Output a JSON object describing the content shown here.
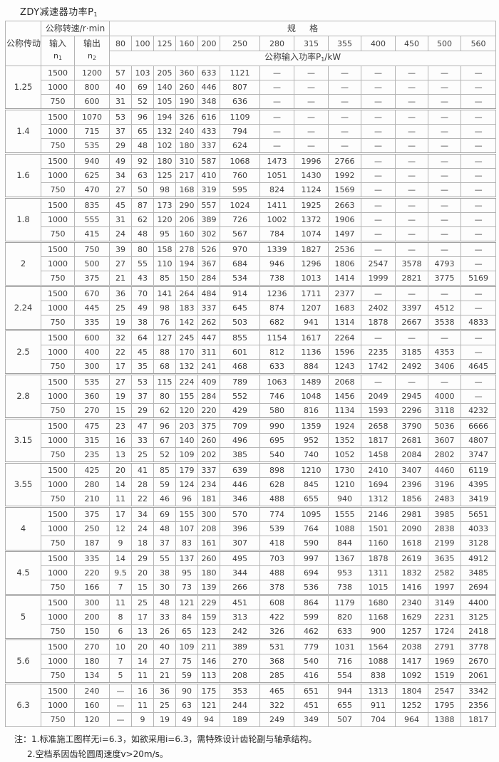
{
  "title": {
    "text": "ZDY减速器功率P",
    "sub": "1"
  },
  "header": {
    "ratio_label": "公称传动比i",
    "speed_label": "公称转速/r·min",
    "input_label": "输入",
    "input_symbol": "n",
    "input_symbol_sub": "1",
    "output_label": "输出",
    "output_symbol": "n",
    "output_symbol_sub": "2",
    "spec_label": "规格",
    "sizes": [
      "80",
      "100",
      "125",
      "160",
      "200",
      "250",
      "280",
      "315",
      "355",
      "400",
      "450",
      "500",
      "560"
    ],
    "power_label_pre": "公称输入功率P",
    "power_label_sub": "1",
    "power_label_post": "/kW"
  },
  "table": {
    "groups": [
      {
        "ratio": "1.25",
        "rows": [
          {
            "input": "1500",
            "output": "1200",
            "values": [
              "57",
              "103",
              "205",
              "360",
              "633",
              "1121",
              "—",
              "—",
              "—",
              "—",
              "—",
              "—",
              "—"
            ]
          },
          {
            "input": "1000",
            "output": "800",
            "values": [
              "40",
              "69",
              "140",
              "260",
              "446",
              "807",
              "—",
              "—",
              "—",
              "—",
              "—",
              "—",
              "—"
            ]
          },
          {
            "input": "750",
            "output": "600",
            "values": [
              "31",
              "52",
              "105",
              "190",
              "348",
              "636",
              "—",
              "—",
              "—",
              "—",
              "—",
              "—",
              "—"
            ]
          }
        ]
      },
      {
        "ratio": "1.4",
        "rows": [
          {
            "input": "1500",
            "output": "1070",
            "values": [
              "53",
              "96",
              "194",
              "326",
              "616",
              "1109",
              "—",
              "—",
              "—",
              "—",
              "—",
              "—",
              "—"
            ]
          },
          {
            "input": "1000",
            "output": "715",
            "values": [
              "37",
              "65",
              "132",
              "240",
              "433",
              "794",
              "—",
              "—",
              "—",
              "—",
              "—",
              "—",
              "—"
            ]
          },
          {
            "input": "750",
            "output": "535",
            "values": [
              "29",
              "48",
              "102",
              "180",
              "337",
              "624",
              "—",
              "—",
              "—",
              "—",
              "—",
              "—",
              "—"
            ]
          }
        ]
      },
      {
        "ratio": "1.6",
        "rows": [
          {
            "input": "1500",
            "output": "940",
            "values": [
              "49",
              "92",
              "180",
              "310",
              "587",
              "1068",
              "1473",
              "1996",
              "2766",
              "—",
              "—",
              "—",
              "—"
            ]
          },
          {
            "input": "1000",
            "output": "625",
            "values": [
              "34",
              "63",
              "125",
              "217",
              "410",
              "760",
              "1051",
              "1430",
              "1992",
              "—",
              "—",
              "—",
              "—"
            ]
          },
          {
            "input": "750",
            "output": "470",
            "values": [
              "27",
              "50",
              "98",
              "168",
              "319",
              "595",
              "824",
              "1124",
              "1569",
              "—",
              "—",
              "—",
              "—"
            ]
          }
        ]
      },
      {
        "ratio": "1.8",
        "rows": [
          {
            "input": "1500",
            "output": "835",
            "values": [
              "45",
              "87",
              "173",
              "290",
              "557",
              "1024",
              "1411",
              "1925",
              "2663",
              "—",
              "—",
              "—",
              "—"
            ]
          },
          {
            "input": "1000",
            "output": "555",
            "values": [
              "31",
              "62",
              "120",
              "206",
              "389",
              "726",
              "1002",
              "1372",
              "1906",
              "—",
              "—",
              "—",
              "—"
            ]
          },
          {
            "input": "750",
            "output": "415",
            "values": [
              "24",
              "48",
              "95",
              "160",
              "302",
              "567",
              "784",
              "1074",
              "1497",
              "—",
              "—",
              "—",
              "—"
            ]
          }
        ]
      },
      {
        "ratio": "2",
        "rows": [
          {
            "input": "1500",
            "output": "750",
            "values": [
              "39",
              "80",
              "158",
              "278",
              "526",
              "970",
              "1339",
              "1827",
              "2536",
              "—",
              "—",
              "—",
              "—"
            ]
          },
          {
            "input": "1000",
            "output": "500",
            "values": [
              "27",
              "55",
              "110",
              "194",
              "367",
              "684",
              "946",
              "1296",
              "1806",
              "2547",
              "3578",
              "4793",
              "—"
            ]
          },
          {
            "input": "750",
            "output": "375",
            "values": [
              "21",
              "43",
              "85",
              "150",
              "284",
              "534",
              "738",
              "1013",
              "1414",
              "1999",
              "2821",
              "3775",
              "5169"
            ]
          }
        ]
      },
      {
        "ratio": "2.24",
        "rows": [
          {
            "input": "1500",
            "output": "670",
            "values": [
              "36",
              "70",
              "141",
              "264",
              "484",
              "914",
              "1236",
              "1711",
              "2377",
              "—",
              "—",
              "—",
              "—"
            ]
          },
          {
            "input": "1000",
            "output": "445",
            "values": [
              "25",
              "49",
              "98",
              "183",
              "337",
              "645",
              "874",
              "1207",
              "1683",
              "2402",
              "3397",
              "4512",
              "—"
            ]
          },
          {
            "input": "750",
            "output": "335",
            "values": [
              "19",
              "38",
              "76",
              "142",
              "262",
              "503",
              "682",
              "941",
              "1314",
              "1878",
              "2667",
              "3538",
              "4833"
            ]
          }
        ]
      },
      {
        "ratio": "2.5",
        "rows": [
          {
            "input": "1500",
            "output": "600",
            "values": [
              "32",
              "64",
              "127",
              "245",
              "447",
              "855",
              "1154",
              "1617",
              "2264",
              "—",
              "—",
              "—",
              "—"
            ]
          },
          {
            "input": "1000",
            "output": "400",
            "values": [
              "22",
              "45",
              "88",
              "170",
              "311",
              "601",
              "812",
              "1136",
              "1596",
              "2235",
              "3185",
              "4353",
              "—"
            ]
          },
          {
            "input": "750",
            "output": "300",
            "values": [
              "17",
              "35",
              "68",
              "132",
              "241",
              "468",
              "633",
              "884",
              "1243",
              "1742",
              "2492",
              "3406",
              "4645"
            ]
          }
        ]
      },
      {
        "ratio": "2.8",
        "rows": [
          {
            "input": "1500",
            "output": "535",
            "values": [
              "27",
              "53",
              "115",
              "224",
              "409",
              "789",
              "1063",
              "1489",
              "2068",
              "—",
              "—",
              "—",
              "—"
            ]
          },
          {
            "input": "1000",
            "output": "360",
            "values": [
              "19",
              "37",
              "80",
              "155",
              "284",
              "552",
              "746",
              "1048",
              "1456",
              "2049",
              "2945",
              "4000",
              "—"
            ]
          },
          {
            "input": "750",
            "output": "270",
            "values": [
              "15",
              "29",
              "62",
              "120",
              "220",
              "429",
              "580",
              "816",
              "1134",
              "1593",
              "2296",
              "3118",
              "4232"
            ]
          }
        ]
      },
      {
        "ratio": "3.15",
        "rows": [
          {
            "input": "1500",
            "output": "475",
            "values": [
              "23",
              "47",
              "96",
              "203",
              "375",
              "709",
              "990",
              "1359",
              "1924",
              "2658",
              "3790",
              "5036",
              "6666"
            ]
          },
          {
            "input": "1000",
            "output": "315",
            "values": [
              "16",
              "33",
              "67",
              "140",
              "260",
              "496",
              "695",
              "952",
              "1352",
              "1817",
              "2681",
              "3607",
              "4807"
            ]
          },
          {
            "input": "750",
            "output": "235",
            "values": [
              "13",
              "25",
              "52",
              "109",
              "202",
              "385",
              "540",
              "740",
              "1052",
              "1458",
              "2084",
              "2802",
              "3747"
            ]
          }
        ]
      },
      {
        "ratio": "3.55",
        "rows": [
          {
            "input": "1500",
            "output": "425",
            "values": [
              "20",
              "41",
              "85",
              "179",
              "337",
              "639",
              "898",
              "1210",
              "1730",
              "2410",
              "3407",
              "4460",
              "6119"
            ]
          },
          {
            "input": "1000",
            "output": "280",
            "values": [
              "14",
              "28",
              "59",
              "124",
              "234",
              "446",
              "628",
              "845",
              "1210",
              "1694",
              "2396",
              "3196",
              "4395"
            ]
          },
          {
            "input": "750",
            "output": "210",
            "values": [
              "11",
              "22",
              "46",
              "96",
              "181",
              "346",
              "488",
              "655",
              "940",
              "1312",
              "1856",
              "2483",
              "3419"
            ]
          }
        ]
      },
      {
        "ratio": "4",
        "rows": [
          {
            "input": "1500",
            "output": "375",
            "values": [
              "17",
              "34",
              "69",
              "155",
              "300",
              "570",
              "774",
              "1095",
              "1555",
              "2146",
              "2981",
              "3985",
              "5651"
            ]
          },
          {
            "input": "1000",
            "output": "250",
            "values": [
              "12",
              "24",
              "48",
              "107",
              "208",
              "396",
              "539",
              "764",
              "1088",
              "1501",
              "2090",
              "2838",
              "4033"
            ]
          },
          {
            "input": "750",
            "output": "187",
            "values": [
              "9",
              "18",
              "37",
              "83",
              "161",
              "307",
              "418",
              "590",
              "844",
              "1160",
              "1618",
              "2199",
              "3128"
            ]
          }
        ]
      },
      {
        "ratio": "4.5",
        "rows": [
          {
            "input": "1500",
            "output": "335",
            "values": [
              "14",
              "29",
              "55",
              "137",
              "260",
              "495",
              "703",
              "997",
              "1367",
              "1878",
              "2619",
              "3635",
              "4912"
            ]
          },
          {
            "input": "1000",
            "output": "220",
            "values": [
              "9.5",
              "20",
              "38",
              "95",
              "180",
              "344",
              "488",
              "694",
              "953",
              "1311",
              "1832",
              "2582",
              "3485"
            ]
          },
          {
            "input": "750",
            "output": "166",
            "values": [
              "7",
              "15",
              "30",
              "73",
              "139",
              "266",
              "378",
              "536",
              "738",
              "1015",
              "1416",
              "1997",
              "2694"
            ]
          }
        ]
      },
      {
        "ratio": "5",
        "rows": [
          {
            "input": "1500",
            "output": "300",
            "values": [
              "11",
              "25",
              "48",
              "121",
              "229",
              "451",
              "608",
              "864",
              "1179",
              "1680",
              "2340",
              "3149",
              "4400"
            ]
          },
          {
            "input": "1000",
            "output": "200",
            "values": [
              "8",
              "17",
              "33",
              "84",
              "159",
              "313",
              "422",
              "599",
              "820",
              "1168",
              "1629",
              "2231",
              "3125"
            ]
          },
          {
            "input": "750",
            "output": "150",
            "values": [
              "6",
              "13",
              "26",
              "65",
              "123",
              "242",
              "326",
              "462",
              "633",
              "900",
              "1257",
              "1724",
              "2418"
            ]
          }
        ]
      },
      {
        "ratio": "5.6",
        "rows": [
          {
            "input": "1500",
            "output": "270",
            "values": [
              "10",
              "20",
              "40",
              "109",
              "211",
              "389",
              "531",
              "779",
              "1031",
              "1564",
              "2038",
              "2791",
              "3778"
            ]
          },
          {
            "input": "1000",
            "output": "180",
            "values": [
              "7",
              "14",
              "27",
              "75",
              "146",
              "270",
              "368",
              "540",
              "716",
              "1088",
              "1417",
              "1969",
              "2670"
            ]
          },
          {
            "input": "750",
            "output": "134",
            "values": [
              "5",
              "11",
              "21",
              "59",
              "113",
              "208",
              "285",
              "416",
              "554",
              "838",
              "1092",
              "1519",
              "2061"
            ]
          }
        ]
      },
      {
        "ratio": "6.3",
        "rows": [
          {
            "input": "1500",
            "output": "240",
            "values": [
              "—",
              "16",
              "36",
              "90",
              "175",
              "353",
              "465",
              "651",
              "944",
              "1313",
              "1804",
              "2547",
              "3342"
            ]
          },
          {
            "input": "1000",
            "output": "160",
            "values": [
              "—",
              "11",
              "25",
              "63",
              "121",
              "244",
              "322",
              "451",
              "655",
              "911",
              "1252",
              "1795",
              "2356"
            ]
          },
          {
            "input": "750",
            "output": "120",
            "values": [
              "—",
              "9",
              "19",
              "49",
              "94",
              "189",
              "249",
              "349",
              "507",
              "704",
              "964",
              "1388",
              "1817"
            ]
          }
        ]
      }
    ]
  },
  "notes": {
    "prefix": "注：",
    "items": [
      "1.标准施工图样无i=6.3，如欲采用i=6.3，需特殊设计齿轮副与轴承结构。",
      "2.空档系因齿轮圆周速度v>20m/s。"
    ]
  }
}
